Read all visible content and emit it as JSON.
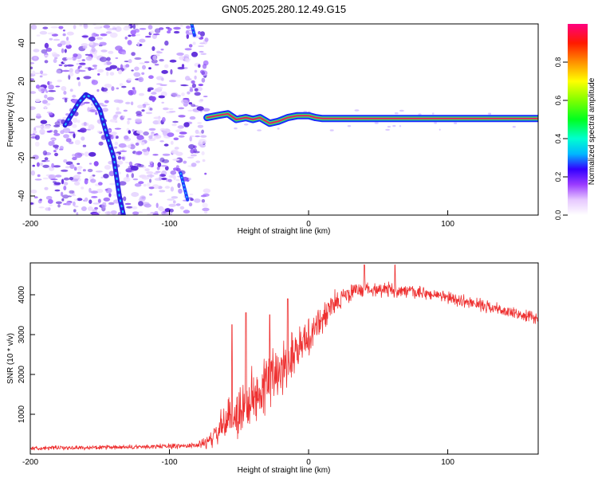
{
  "title": "GN05.2025.280.12.49.G15",
  "colors": {
    "snr_line": "#ee3030",
    "doppler_track": "#e8205a",
    "noise": "#6a33e0",
    "axes": "#000000"
  },
  "chart_data": [
    {
      "type": "heatmap",
      "name": "spectrogram",
      "xlabel": "Height of straight line (km)",
      "ylabel": "Frequency (Hz)",
      "xlim": [
        -200,
        165
      ],
      "ylim": [
        -50,
        50
      ],
      "xticks": [
        -200,
        -100,
        0,
        100
      ],
      "yticks": [
        -40,
        -20,
        0,
        20,
        40
      ],
      "xtick_labels": [
        "-200",
        "-100",
        "0",
        "100"
      ],
      "ytick_labels": [
        "-40",
        "-20",
        "0",
        "20",
        "40"
      ],
      "colorbar": {
        "label": "Normalized spectral amplitude",
        "range": [
          0,
          1
        ],
        "ticks": [
          0.0,
          0.2,
          0.4,
          0.6,
          0.8
        ],
        "tick_labels": [
          "0.0",
          "0.2",
          "0.4",
          "0.6",
          "0.8"
        ]
      },
      "noise_region_x": [
        -200,
        -73
      ],
      "direct_signal_track": [
        {
          "x": -73,
          "y": 1
        },
        {
          "x": -66,
          "y": 2
        },
        {
          "x": -58,
          "y": 3
        },
        {
          "x": -52,
          "y": 0
        },
        {
          "x": -45,
          "y": 1
        },
        {
          "x": -40,
          "y": 0
        },
        {
          "x": -35,
          "y": 1
        },
        {
          "x": -28,
          "y": -2
        },
        {
          "x": -22,
          "y": -1
        },
        {
          "x": -15,
          "y": 1
        },
        {
          "x": -8,
          "y": 2
        },
        {
          "x": 0,
          "y": 2
        },
        {
          "x": 5,
          "y": 1
        },
        {
          "x": 10,
          "y": 0.5
        },
        {
          "x": 30,
          "y": 0.5
        },
        {
          "x": 60,
          "y": 0.5
        },
        {
          "x": 100,
          "y": 0.5
        },
        {
          "x": 130,
          "y": 0.5
        },
        {
          "x": 165,
          "y": 0.5
        }
      ],
      "reflected_arc": [
        {
          "x": -175,
          "y": -3
        },
        {
          "x": -170,
          "y": 3
        },
        {
          "x": -165,
          "y": 9
        },
        {
          "x": -160,
          "y": 13
        },
        {
          "x": -155,
          "y": 11
        },
        {
          "x": -150,
          "y": 5
        },
        {
          "x": -145,
          "y": -8
        },
        {
          "x": -140,
          "y": -20
        },
        {
          "x": -136,
          "y": -40
        },
        {
          "x": -133,
          "y": -50
        }
      ],
      "streaks": [
        [
          {
            "x": -92,
            "y": -28
          },
          {
            "x": -87,
            "y": -42
          }
        ],
        [
          {
            "x": -84,
            "y": 50
          },
          {
            "x": -82,
            "y": 44
          }
        ]
      ]
    },
    {
      "type": "line",
      "name": "snr",
      "xlabel": "Height of straight line (km)",
      "ylabel": "SNR (10 * v/v)",
      "xlim": [
        -200,
        165
      ],
      "ylim": [
        0,
        4800
      ],
      "xticks": [
        -200,
        -100,
        0,
        100
      ],
      "yticks": [
        1000,
        2000,
        3000,
        4000
      ],
      "xtick_labels": [
        "-200",
        "-100",
        "0",
        "100"
      ],
      "ytick_labels": [
        "1000",
        "2000",
        "3000",
        "4000"
      ],
      "envelope": [
        {
          "x": -200,
          "mean": 150,
          "spread": 60
        },
        {
          "x": -130,
          "mean": 170,
          "spread": 70
        },
        {
          "x": -80,
          "mean": 220,
          "spread": 90
        },
        {
          "x": -70,
          "mean": 350,
          "spread": 250
        },
        {
          "x": -60,
          "mean": 800,
          "spread": 600
        },
        {
          "x": -50,
          "mean": 1050,
          "spread": 800
        },
        {
          "x": -40,
          "mean": 1400,
          "spread": 900
        },
        {
          "x": -30,
          "mean": 1800,
          "spread": 900
        },
        {
          "x": -20,
          "mean": 2200,
          "spread": 900
        },
        {
          "x": -10,
          "mean": 2600,
          "spread": 700
        },
        {
          "x": 0,
          "mean": 2950,
          "spread": 600
        },
        {
          "x": 10,
          "mean": 3400,
          "spread": 500
        },
        {
          "x": 20,
          "mean": 3850,
          "spread": 350
        },
        {
          "x": 35,
          "mean": 4120,
          "spread": 250
        },
        {
          "x": 50,
          "mean": 4150,
          "spread": 230
        },
        {
          "x": 70,
          "mean": 4080,
          "spread": 200
        },
        {
          "x": 90,
          "mean": 4000,
          "spread": 180
        },
        {
          "x": 110,
          "mean": 3850,
          "spread": 180
        },
        {
          "x": 130,
          "mean": 3700,
          "spread": 180
        },
        {
          "x": 150,
          "mean": 3500,
          "spread": 180
        },
        {
          "x": 165,
          "mean": 3400,
          "spread": 180
        }
      ],
      "spikes": [
        {
          "x": -55,
          "y": 3250
        },
        {
          "x": -45,
          "y": 3550
        },
        {
          "x": -28,
          "y": 3500
        },
        {
          "x": -15,
          "y": 3900
        },
        {
          "x": 40,
          "y": 4750
        },
        {
          "x": 62,
          "y": 4750
        }
      ]
    }
  ]
}
